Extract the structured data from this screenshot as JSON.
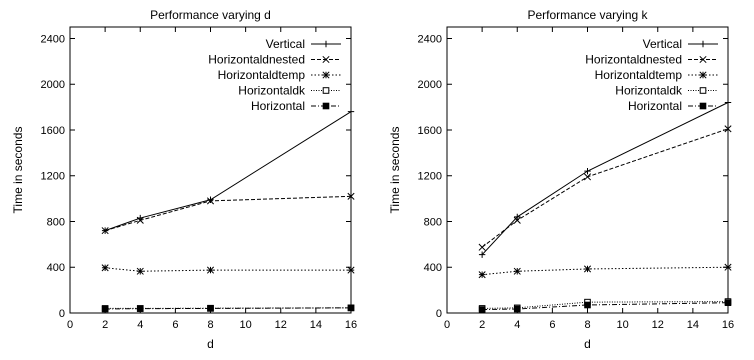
{
  "chart_data": [
    {
      "type": "line",
      "title": "Performance varying d",
      "xlabel": "d",
      "ylabel": "Time in seconds",
      "x": [
        2,
        4,
        8,
        16
      ],
      "xlim": [
        0,
        16
      ],
      "ylim": [
        0,
        2500
      ],
      "xticks": [
        0,
        2,
        4,
        6,
        8,
        10,
        12,
        14,
        16
      ],
      "yticks": [
        0,
        400,
        800,
        1200,
        1600,
        2000,
        2400
      ],
      "grid": false,
      "legend": "top-right",
      "series": [
        {
          "name": "Vertical",
          "marker": "plus",
          "dash": "solid",
          "values": [
            720,
            830,
            990,
            1760
          ]
        },
        {
          "name": "Horizontaldnested",
          "marker": "x",
          "dash": "dashed",
          "values": [
            720,
            810,
            980,
            1020
          ]
        },
        {
          "name": "Horizontaldtemp",
          "marker": "star",
          "dash": "dotted",
          "values": [
            395,
            365,
            375,
            375
          ]
        },
        {
          "name": "Horizontaldk",
          "marker": "square-open",
          "dash": "fine-dotted",
          "values": [
            40,
            40,
            42,
            45
          ]
        },
        {
          "name": "Horizontal",
          "marker": "square-filled",
          "dash": "dash-dot",
          "values": [
            35,
            38,
            40,
            45
          ]
        }
      ]
    },
    {
      "type": "line",
      "title": "Performance varying k",
      "xlabel": "d",
      "ylabel": "Time in seconds",
      "x": [
        2,
        4,
        8,
        16
      ],
      "xlim": [
        0,
        16
      ],
      "ylim": [
        0,
        2500
      ],
      "xticks": [
        0,
        2,
        4,
        6,
        8,
        10,
        12,
        14,
        16
      ],
      "yticks": [
        0,
        400,
        800,
        1200,
        1600,
        2000,
        2400
      ],
      "grid": false,
      "legend": "top-right",
      "series": [
        {
          "name": "Vertical",
          "marker": "plus",
          "dash": "solid",
          "values": [
            510,
            840,
            1240,
            1840
          ]
        },
        {
          "name": "Horizontaldnested",
          "marker": "x",
          "dash": "dashed",
          "values": [
            575,
            810,
            1190,
            1610
          ]
        },
        {
          "name": "Horizontaldtemp",
          "marker": "star",
          "dash": "dotted",
          "values": [
            335,
            365,
            385,
            400
          ]
        },
        {
          "name": "Horizontaldk",
          "marker": "square-open",
          "dash": "fine-dotted",
          "values": [
            40,
            45,
            95,
            100
          ]
        },
        {
          "name": "Horizontal",
          "marker": "square-filled",
          "dash": "dash-dot",
          "values": [
            30,
            35,
            70,
            90
          ]
        }
      ]
    }
  ]
}
